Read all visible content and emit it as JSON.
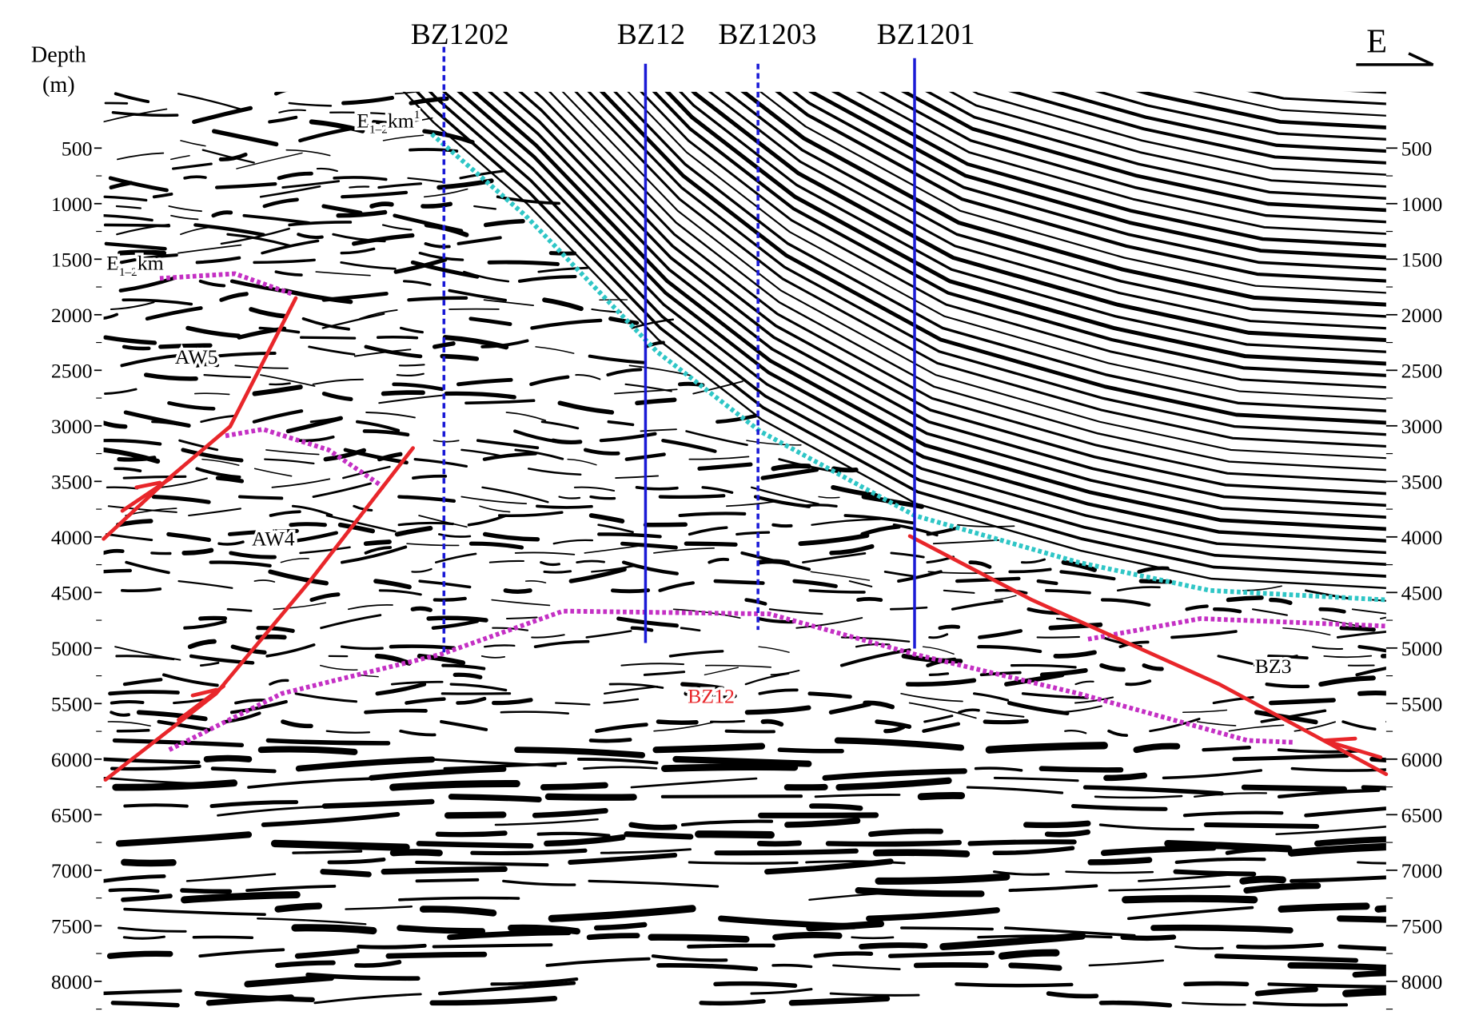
{
  "depth_axis": {
    "title": [
      "Depth",
      "(m)"
    ],
    "ticks": [
      500,
      1000,
      1500,
      2000,
      2500,
      3000,
      3500,
      4000,
      4500,
      5000,
      5500,
      6000,
      6500,
      7000,
      7500,
      8000
    ]
  },
  "compass": "E",
  "wells": [
    {
      "label": "BZ1202",
      "style": "dashed"
    },
    {
      "label": "BZ12",
      "style": "solid"
    },
    {
      "label": "BZ1203",
      "style": "dashed"
    },
    {
      "label": "BZ1201",
      "style": "solid"
    }
  ],
  "horizon_labels": [
    {
      "base": "E",
      "sub": "1–2",
      "main": "km",
      "sup": "1"
    },
    {
      "base": "E",
      "sub": "1–2",
      "main": "km"
    }
  ],
  "structure_labels": [
    "AW5",
    "AW4",
    "BZ12",
    "BZ3"
  ]
}
